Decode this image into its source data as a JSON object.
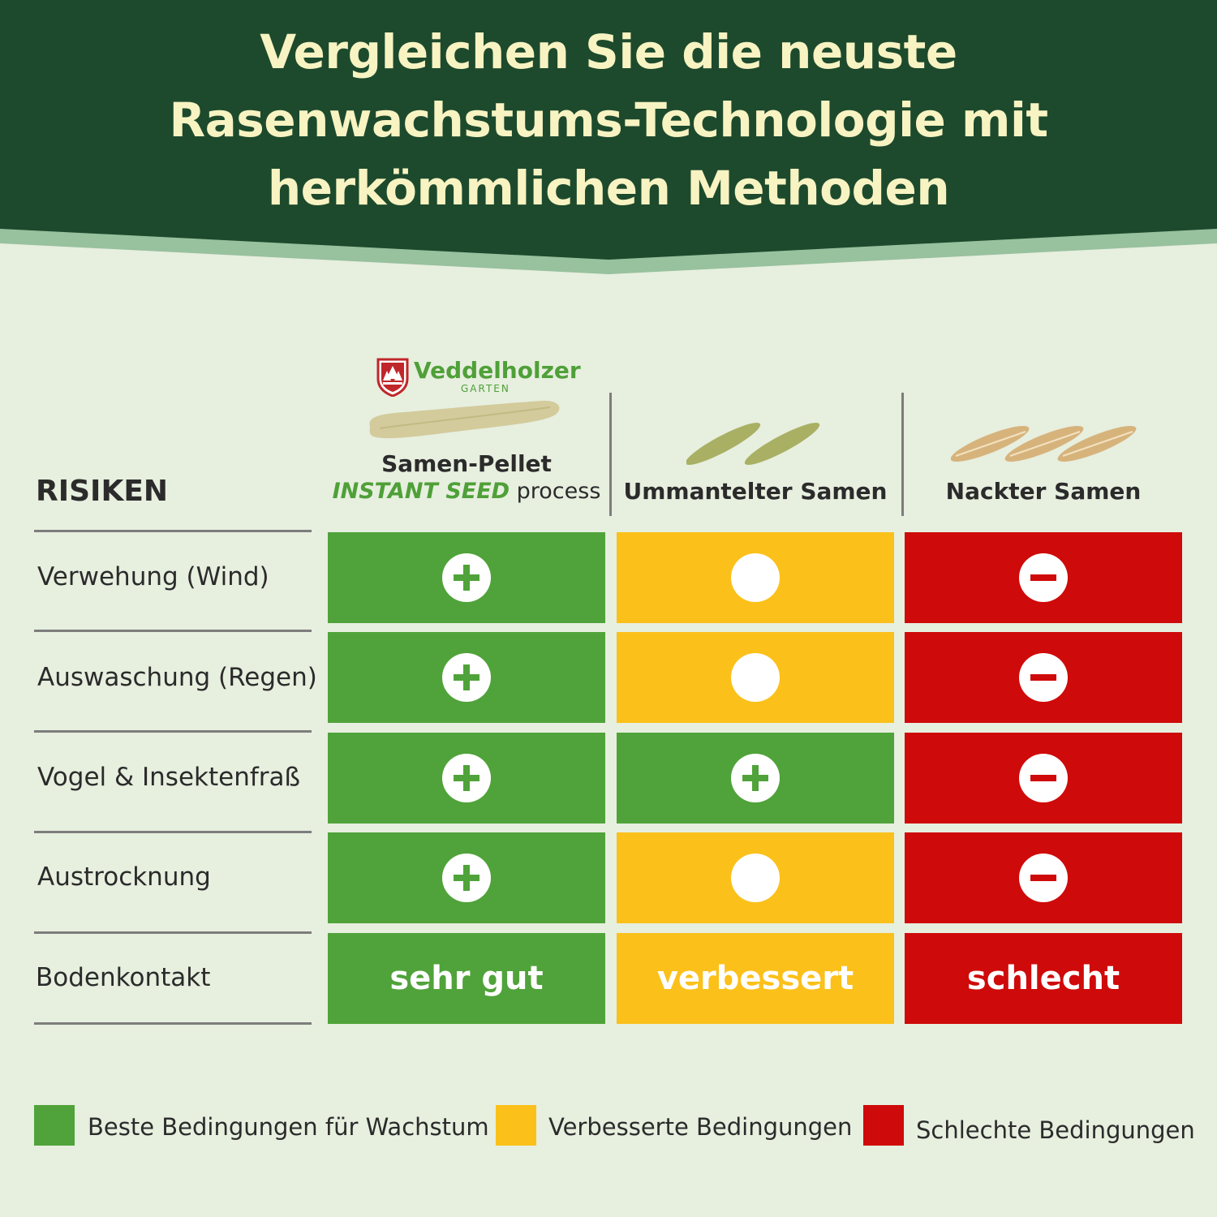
{
  "title": {
    "line1": "Vergleichen Sie die neuste",
    "line2": "Rasenwachstums-Technologie mit",
    "line3": "herkömmlichen Methoden"
  },
  "brand": {
    "name": "Veddelholzer",
    "sub": "GARTEN"
  },
  "table": {
    "risk_header": "RISIKEN",
    "columns": [
      {
        "title": "Samen-Pellet",
        "subtitle_brand": "INSTANT SEED",
        "subtitle_rest": " process"
      },
      {
        "title": "Ummantelter Samen"
      },
      {
        "title": "Nackter Samen"
      }
    ],
    "rows": [
      {
        "label": "Verwehung (Wind)",
        "ratings": [
          "plus",
          "neutral",
          "minus"
        ]
      },
      {
        "label": "Auswaschung (Regen)",
        "ratings": [
          "plus",
          "neutral",
          "minus"
        ]
      },
      {
        "label": "Vogel & Insektenfraß",
        "ratings": [
          "plus",
          "plus",
          "minus"
        ]
      },
      {
        "label": "Austrocknung",
        "ratings": [
          "plus",
          "neutral",
          "minus"
        ]
      },
      {
        "label": "Bodenkontakt",
        "texts": [
          "sehr gut",
          "verbessert",
          "schlecht"
        ]
      }
    ]
  },
  "legend": [
    {
      "label": "Beste Bedingungen für Wachstum",
      "color": "#50a33a"
    },
    {
      "label": "Verbesserte Bedingungen",
      "color": "#fbc01a"
    },
    {
      "label": "Schlechte Bedingungen",
      "color": "#cf0a0a"
    }
  ],
  "colors": {
    "banner": "#1d4a2d",
    "banner_edge": "#98c19e",
    "background": "#e7efdf",
    "plus": "#50a33a",
    "neutral": "#fbc01a",
    "minus": "#cf0a0a"
  }
}
